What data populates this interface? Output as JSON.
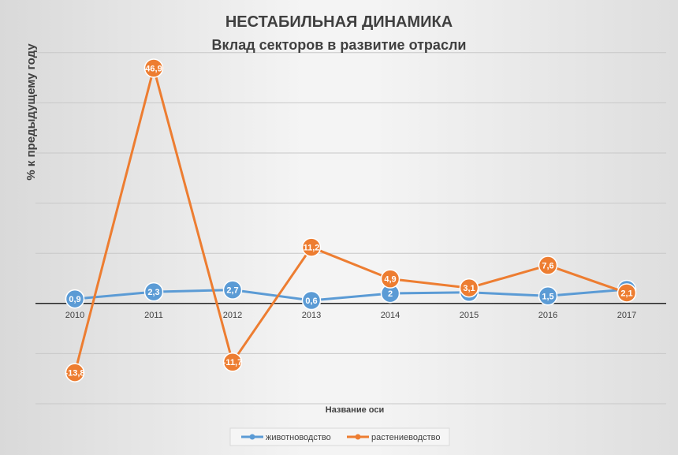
{
  "chart_data": {
    "type": "line",
    "title": "НЕСТАБИЛЬНАЯ ДИНАМИКА",
    "subtitle": "Вклад секторов в развитие отрасли",
    "xlabel": "Название оси",
    "ylabel": "%  к предыдущему году",
    "categories": [
      "2010",
      "2011",
      "2012",
      "2013",
      "2014",
      "2015",
      "2016",
      "2017"
    ],
    "ylim": [
      -20,
      55
    ],
    "y_gridline_step": 10,
    "grid": true,
    "series": [
      {
        "name": "животноводство",
        "color": "#5b9bd5",
        "values": [
          0.9,
          2.3,
          2.7,
          0.6,
          2,
          2.2,
          1.5,
          2.8
        ],
        "labels": [
          "0,9",
          "2,3",
          "2,7",
          "0,6",
          "2",
          "2,2",
          "1,5",
          "2,8"
        ]
      },
      {
        "name": "растениеводство",
        "color": "#ed7d31",
        "values": [
          -13.8,
          46.9,
          -11.7,
          11.2,
          4.9,
          3.1,
          7.6,
          2.1
        ],
        "labels": [
          "-13,8",
          "46,9",
          "-11,7",
          "11,2",
          "4,9",
          "3,1",
          "7,6",
          "2,1"
        ]
      }
    ],
    "legend_position": "bottom"
  }
}
